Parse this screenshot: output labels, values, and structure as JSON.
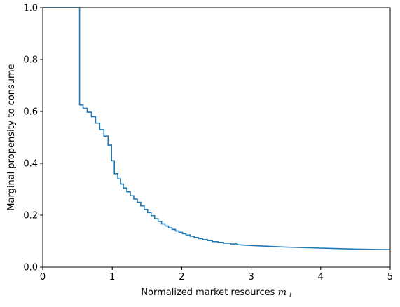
{
  "chart_data": {
    "type": "line",
    "xlabel": "Normalized market resources",
    "xlabel_math": "m",
    "xlabel_math_sub": "t",
    "ylabel": "Marginal propensity to consume",
    "xlim": [
      0,
      5
    ],
    "ylim": [
      0,
      1.0
    ],
    "grid": false,
    "line_color": "#1f77b4",
    "x_ticks": [
      0,
      1,
      2,
      3,
      4,
      5
    ],
    "x_tick_labels": [
      "0",
      "1",
      "2",
      "3",
      "4",
      "5"
    ],
    "y_ticks": [
      0.0,
      0.2,
      0.4,
      0.6,
      0.8,
      1.0
    ],
    "y_tick_labels": [
      "0.0",
      "0.2",
      "0.4",
      "0.6",
      "0.8",
      "1.0"
    ],
    "series": [
      {
        "x": [
          0.0,
          0.53,
          0.53,
          0.58,
          0.58,
          0.64,
          0.64,
          0.7,
          0.7,
          0.76,
          0.76,
          0.82,
          0.82,
          0.88,
          0.88,
          0.94,
          0.94,
          0.99,
          0.99,
          1.03,
          1.03,
          1.08,
          1.08,
          1.12,
          1.12,
          1.16,
          1.16,
          1.21,
          1.21,
          1.26,
          1.26,
          1.31,
          1.31,
          1.36,
          1.36,
          1.41,
          1.41,
          1.46,
          1.46,
          1.51,
          1.51,
          1.56,
          1.56,
          1.61,
          1.61,
          1.66,
          1.66,
          1.71,
          1.71,
          1.76,
          1.76,
          1.81,
          1.81,
          1.86,
          1.86,
          1.91,
          1.91,
          1.96,
          1.96,
          2.01,
          2.01,
          2.06,
          2.06,
          2.12,
          2.12,
          2.18,
          2.18,
          2.24,
          2.24,
          2.3,
          2.3,
          2.37,
          2.37,
          2.44,
          2.44,
          2.52,
          2.52,
          2.6,
          2.6,
          2.7,
          2.7,
          2.8,
          2.8,
          3.0,
          3.25,
          3.5,
          3.75,
          4.0,
          4.25,
          4.5,
          4.75,
          5.0
        ],
        "y": [
          1.0,
          1.0,
          0.625,
          0.625,
          0.612,
          0.612,
          0.597,
          0.597,
          0.58,
          0.58,
          0.555,
          0.555,
          0.53,
          0.53,
          0.505,
          0.505,
          0.47,
          0.47,
          0.41,
          0.41,
          0.36,
          0.36,
          0.34,
          0.34,
          0.32,
          0.32,
          0.305,
          0.305,
          0.29,
          0.29,
          0.275,
          0.275,
          0.262,
          0.262,
          0.25,
          0.25,
          0.236,
          0.236,
          0.222,
          0.222,
          0.21,
          0.21,
          0.198,
          0.198,
          0.186,
          0.186,
          0.176,
          0.176,
          0.166,
          0.166,
          0.158,
          0.158,
          0.151,
          0.151,
          0.145,
          0.145,
          0.139,
          0.139,
          0.134,
          0.134,
          0.129,
          0.129,
          0.124,
          0.124,
          0.119,
          0.119,
          0.114,
          0.114,
          0.11,
          0.11,
          0.106,
          0.106,
          0.102,
          0.102,
          0.098,
          0.098,
          0.095,
          0.095,
          0.092,
          0.092,
          0.089,
          0.089,
          0.086,
          0.083,
          0.08,
          0.077,
          0.075,
          0.073,
          0.071,
          0.069,
          0.068,
          0.067
        ]
      }
    ]
  }
}
